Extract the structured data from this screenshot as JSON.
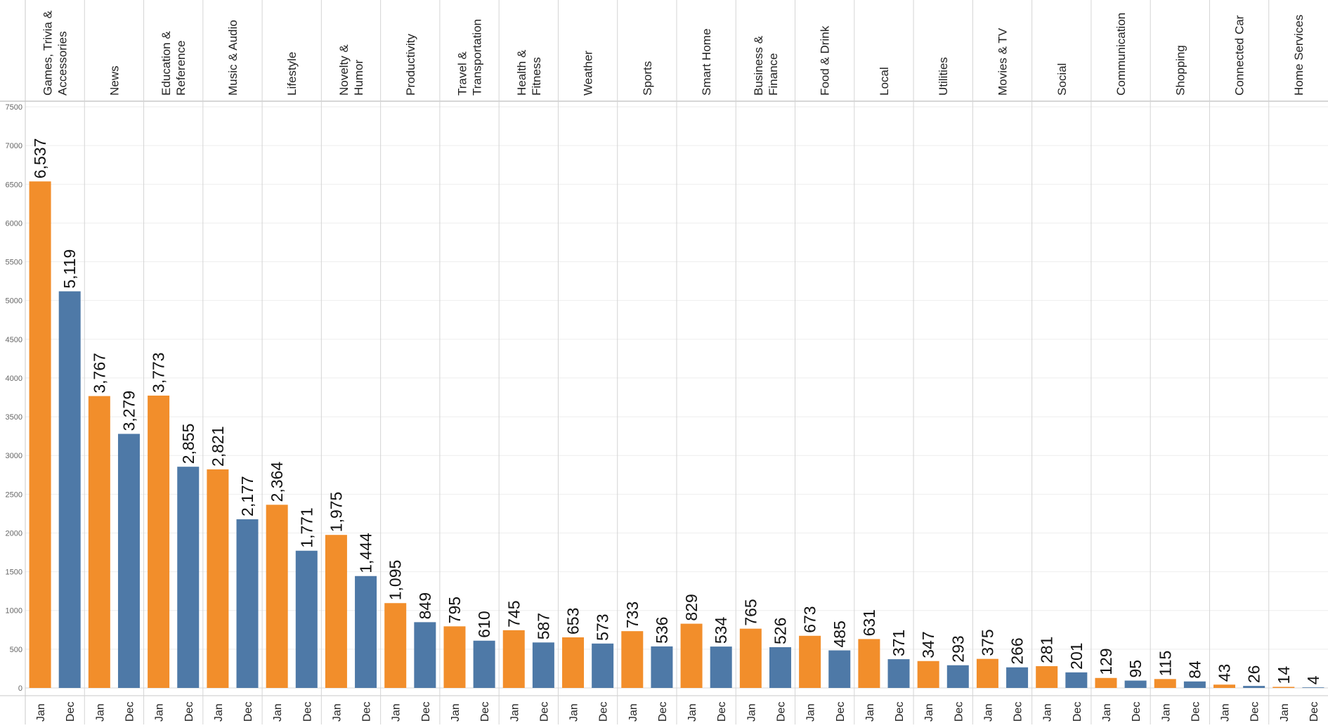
{
  "chart_data": {
    "type": "bar",
    "categories": [
      "Games, Trivia & Accessories",
      "News",
      "Education & Reference",
      "Music & Audio",
      "Lifestyle",
      "Novelty & Humor",
      "Productivity",
      "Travel & Transportation",
      "Health & Fitness",
      "Weather",
      "Sports",
      "Smart Home",
      "Business & Finance",
      "Food & Drink",
      "Local",
      "Utilities",
      "Movies & TV",
      "Social",
      "Communication",
      "Shopping",
      "Connected Car",
      "Home Services"
    ],
    "category_label_lines": [
      [
        "Games, Trivia &",
        "Accessories"
      ],
      [
        "News"
      ],
      [
        "Education &",
        "Reference"
      ],
      [
        "Music & Audio"
      ],
      [
        "Lifestyle"
      ],
      [
        "Novelty &",
        "Humor"
      ],
      [
        "Productivity"
      ],
      [
        "Travel &",
        "Transportation"
      ],
      [
        "Health &",
        "Fitness"
      ],
      [
        "Weather"
      ],
      [
        "Sports"
      ],
      [
        "Smart Home"
      ],
      [
        "Business &",
        "Finance"
      ],
      [
        "Food & Drink"
      ],
      [
        "Local"
      ],
      [
        "Utilities"
      ],
      [
        "Movies & TV"
      ],
      [
        "Social"
      ],
      [
        "Communication"
      ],
      [
        "Shopping"
      ],
      [
        "Connected Car"
      ],
      [
        "Home Services"
      ]
    ],
    "months": [
      "Jan",
      "Dec"
    ],
    "series": [
      {
        "name": "Jan",
        "color": "#f28e2b",
        "values": [
          6537,
          3767,
          3773,
          2821,
          2364,
          1975,
          1095,
          795,
          745,
          653,
          733,
          829,
          765,
          673,
          631,
          347,
          375,
          281,
          129,
          115,
          43,
          14
        ],
        "labels": [
          "6,537",
          "3,767",
          "3,773",
          "2,821",
          "2,364",
          "1,975",
          "1,095",
          "795",
          "745",
          "653",
          "733",
          "829",
          "765",
          "673",
          "631",
          "347",
          "375",
          "281",
          "129",
          "115",
          "43",
          "14"
        ]
      },
      {
        "name": "Dec",
        "color": "#4e79a7",
        "values": [
          5119,
          3279,
          2855,
          2177,
          1771,
          1444,
          849,
          610,
          587,
          573,
          536,
          534,
          526,
          485,
          371,
          293,
          266,
          201,
          95,
          84,
          26,
          4
        ],
        "labels": [
          "5,119",
          "3,279",
          "2,855",
          "2,177",
          "1,771",
          "1,444",
          "849",
          "610",
          "587",
          "573",
          "536",
          "534",
          "526",
          "485",
          "371",
          "293",
          "266",
          "201",
          "95",
          "84",
          "26",
          "4"
        ]
      }
    ],
    "y_ticks": [
      "0",
      "500",
      "1000",
      "1500",
      "2000",
      "2500",
      "3000",
      "3500",
      "4000",
      "4500",
      "5000",
      "5500",
      "6000",
      "6500",
      "7000",
      "7500"
    ],
    "ylim": [
      0,
      7500
    ],
    "grid": true,
    "title": "",
    "xlabel": "",
    "ylabel": ""
  }
}
